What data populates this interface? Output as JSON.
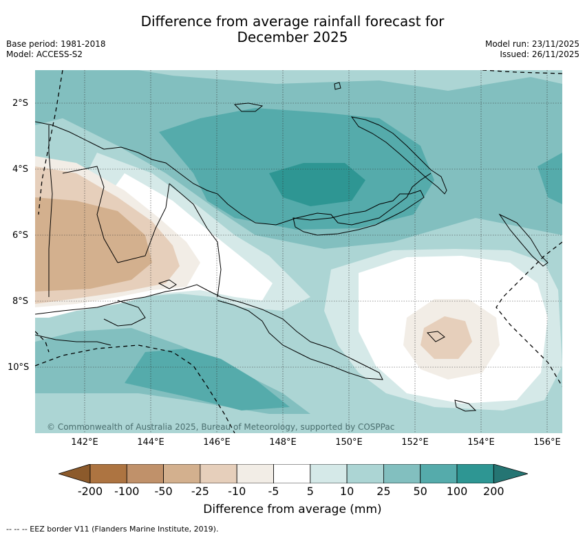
{
  "title_line1": "Difference from average rainfall forecast for",
  "title_line2": "December 2025",
  "base_period": "Base period: 1981-2018",
  "model": "Model: ACCESS-S2",
  "model_run": "Model run: 23/11/2025",
  "issued": "Issued: 26/11/2025",
  "lat_labels": [
    "2°S",
    "4°S",
    "6°S",
    "8°S",
    "10°S"
  ],
  "lon_labels": [
    "142°E",
    "144°E",
    "146°E",
    "148°E",
    "150°E",
    "152°E",
    "154°E",
    "156°E"
  ],
  "copyright": "© Commonwealth of Australia 2025, Bureau of Meteorology, supported by COSPPac",
  "colorbar": {
    "title": "Difference from average (mm)",
    "ticks": [
      "-200",
      "-100",
      "-50",
      "-25",
      "-10",
      "-5",
      "5",
      "10",
      "25",
      "50",
      "100",
      "200"
    ],
    "colors": [
      "#8c5a2b",
      "#ad7441",
      "#c0916a",
      "#d3b08e",
      "#e6cfbb",
      "#f2ede6",
      "#ffffff",
      "#d5e9e8",
      "#acd5d4",
      "#82bfbf",
      "#55abab",
      "#2e9693",
      "#257573"
    ]
  },
  "footnote": "-- -- -- EEZ border V11 (Flanders Marine Institute, 2019).",
  "colors": {
    "dry_strong": "#d3b08e",
    "dry": "#e6cfbb",
    "dry_light": "#f2ede6",
    "wet_light": "#d5e9e8",
    "wet": "#acd5d4",
    "wet_mid": "#82bfbf",
    "wet_strong": "#55abab",
    "wet_max": "#2e9693"
  }
}
